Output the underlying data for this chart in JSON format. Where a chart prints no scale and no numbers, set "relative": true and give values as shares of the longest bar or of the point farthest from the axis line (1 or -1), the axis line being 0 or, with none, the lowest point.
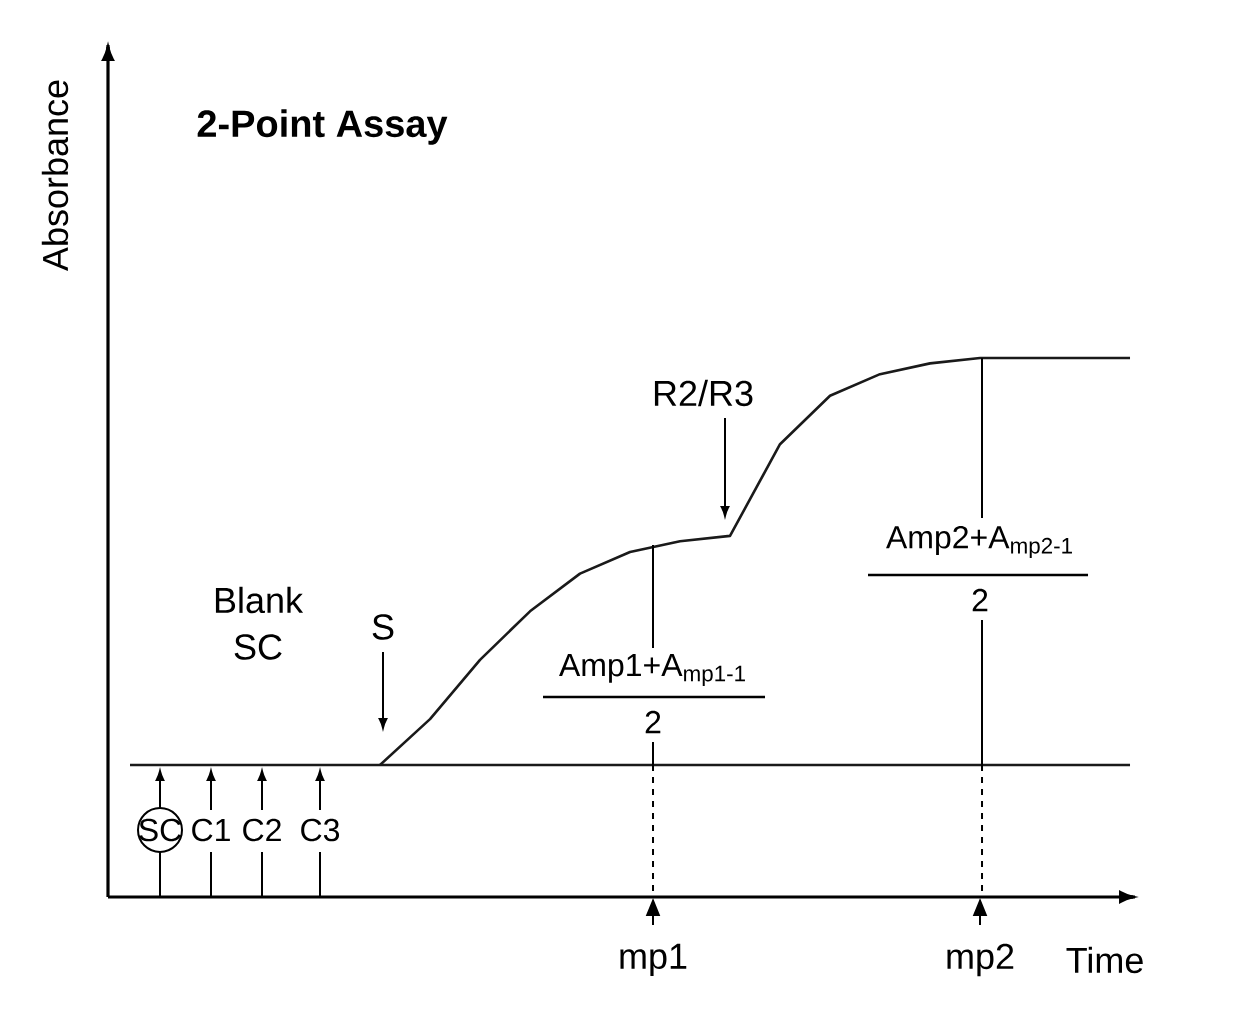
{
  "chart_data": {
    "type": "line",
    "title": "2-Point Assay",
    "xlabel": "Time",
    "ylabel": "Absorbance",
    "relative": true,
    "marker": "none",
    "categories": [
      null,
      null,
      null,
      null,
      null,
      null,
      null,
      null,
      null,
      null,
      null,
      null,
      null,
      null,
      null,
      null,
      null,
      null,
      null,
      null,
      null
    ],
    "series": [
      {
        "color": "#1a1a1a",
        "values": [
          null,
          null,
          null,
          null,
          null,
          0.245,
          0.33,
          0.44,
          0.53,
          0.6,
          0.64,
          0.66,
          0.67,
          0.84,
          0.93,
          0.97,
          0.99,
          1.0,
          1.0,
          1.0,
          1.0
        ]
      },
      {
        "color": "#1a1a1a",
        "values": [
          0.245,
          0.245,
          0.245,
          0.245,
          0.245,
          0.245,
          0.245,
          0.245,
          0.245,
          0.245,
          0.245,
          0.245,
          0.245,
          0.245,
          0.245,
          0.245,
          0.245,
          0.245,
          0.245,
          0.245,
          0.245
        ]
      }
    ],
    "annotations": [
      "Blank",
      "SC",
      "S",
      "R2/R3",
      "Amp1+A$_{mp1-1}$",
      "2",
      "Amp2+A$_{mp2-1}$",
      "2",
      "SC",
      "C1",
      "C2",
      "C3",
      "mp1",
      "mp2"
    ]
  }
}
